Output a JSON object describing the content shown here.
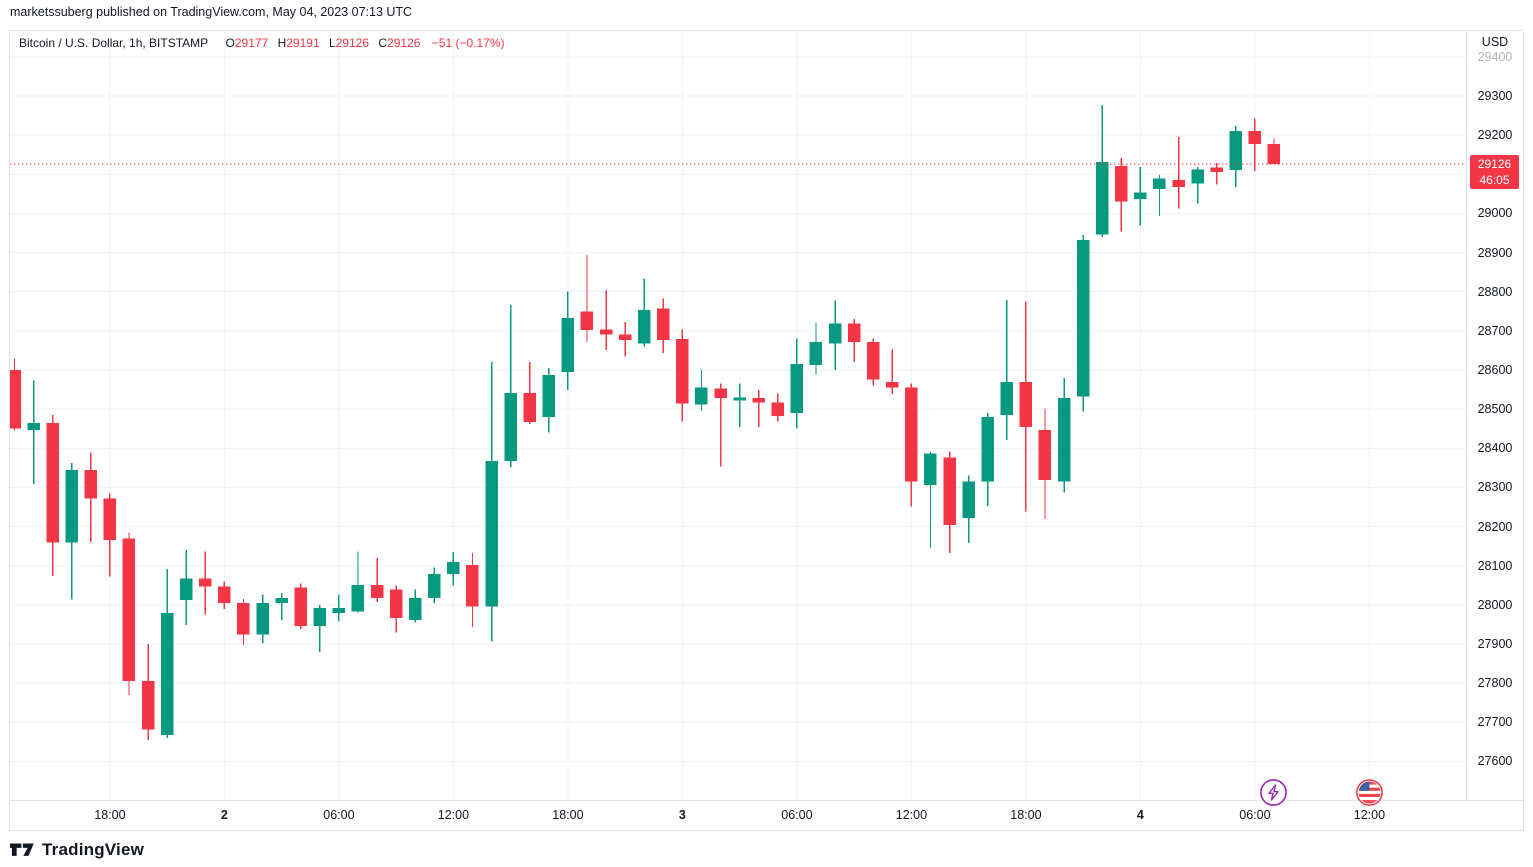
{
  "header": {
    "text": "marketssuberg published on TradingView.com, May 04, 2023 07:13 UTC"
  },
  "legend": {
    "title": "Bitcoin / U.S. Dollar, 1h, BITSTAMP",
    "o_label": "O",
    "o": "29177",
    "h_label": "H",
    "h": "29191",
    "l_label": "L",
    "l": "29126",
    "c_label": "C",
    "c": "29126",
    "change": "−51 (−0.17%)"
  },
  "price_axis": {
    "currency": "USD",
    "labels": [
      {
        "text": "29400",
        "muted": true
      },
      {
        "text": "29300"
      },
      {
        "text": "29200"
      },
      {
        "text": "29000"
      },
      {
        "text": "28900"
      },
      {
        "text": "28800"
      },
      {
        "text": "28700"
      },
      {
        "text": "28600"
      },
      {
        "text": "28500"
      },
      {
        "text": "28400"
      },
      {
        "text": "28300"
      },
      {
        "text": "28200"
      },
      {
        "text": "28100"
      },
      {
        "text": "28000"
      },
      {
        "text": "27900"
      },
      {
        "text": "27800"
      },
      {
        "text": "27700"
      },
      {
        "text": "27600"
      }
    ],
    "badge": {
      "price": "29126",
      "countdown": "46:05"
    }
  },
  "time_axis": {
    "labels": [
      {
        "text": "18:00",
        "bar": 5
      },
      {
        "text": "2",
        "bar": 11,
        "bold": true
      },
      {
        "text": "06:00",
        "bar": 17
      },
      {
        "text": "12:00",
        "bar": 23
      },
      {
        "text": "18:00",
        "bar": 29
      },
      {
        "text": "3",
        "bar": 35,
        "bold": true
      },
      {
        "text": "06:00",
        "bar": 41
      },
      {
        "text": "12:00",
        "bar": 47
      },
      {
        "text": "18:00",
        "bar": 53
      },
      {
        "text": "4",
        "bar": 59,
        "bold": true
      },
      {
        "text": "06:00",
        "bar": 65
      },
      {
        "text": "12:00",
        "bar": 71
      }
    ]
  },
  "events": [
    {
      "name": "crypto-event",
      "icon": "lightning",
      "color": "#9C27B0",
      "bar": 66
    },
    {
      "name": "us-economic-event",
      "icon": "us-flag",
      "color": "#F0444F",
      "bar": 71
    }
  ],
  "footer": {
    "brand": "TradingView"
  },
  "colors": {
    "up": "#089981",
    "down": "#F23645",
    "grid": "#F0F3FA",
    "border": "#E0E3EB",
    "text": "#131722",
    "muted_text": "#B2B5BE"
  },
  "chart_data": {
    "type": "candlestick",
    "title": "Bitcoin / U.S. Dollar, 1h, BITSTAMP",
    "symbol": "BTCUSD",
    "interval": "1h",
    "exchange": "BITSTAMP",
    "ylabel": "USD",
    "ylim": [
      27500,
      29470
    ],
    "grid": true,
    "last_price": 29126,
    "countdown": "46:05",
    "change": "-51 (-0.17%)",
    "up_color": "#089981",
    "down_color": "#F23645",
    "columns": [
      "time",
      "open",
      "high",
      "low",
      "close"
    ],
    "bars": [
      [
        "May 1 13:00",
        28600,
        28630,
        28445,
        28450
      ],
      [
        "May 1 14:00",
        28447,
        28573,
        28309,
        28465
      ],
      [
        "May 1 15:00",
        28465,
        28485,
        28074,
        28159
      ],
      [
        "May 1 16:00",
        28159,
        28363,
        28014,
        28345
      ],
      [
        "May 1 17:00",
        28345,
        28389,
        28161,
        28272
      ],
      [
        "May 1 18:00",
        28272,
        28285,
        28072,
        28166
      ],
      [
        "May 1 19:00",
        28170,
        28185,
        27770,
        27806
      ],
      [
        "May 1 20:00",
        27806,
        27900,
        27655,
        27682
      ],
      [
        "May 1 21:00",
        27668,
        28092,
        27660,
        27979
      ],
      [
        "May 1 22:00",
        28013,
        28140,
        27949,
        28068
      ],
      [
        "May 1 23:00",
        28068,
        28136,
        27975,
        28047
      ],
      [
        "May 2 00:00",
        28047,
        28060,
        27990,
        28005
      ],
      [
        "May 2 01:00",
        28005,
        28015,
        27898,
        27925
      ],
      [
        "May 2 02:00",
        27925,
        28026,
        27903,
        28005
      ],
      [
        "May 2 03:00",
        28005,
        28031,
        27962,
        28018
      ],
      [
        "May 2 04:00",
        28044,
        28055,
        27938,
        27946
      ],
      [
        "May 2 05:00",
        27946,
        28000,
        27880,
        27992
      ],
      [
        "May 2 06:00",
        27979,
        28026,
        27957,
        27992
      ],
      [
        "May 2 07:00",
        27983,
        28136,
        27979,
        28051
      ],
      [
        "May 2 08:00",
        28051,
        28120,
        28008,
        28018
      ],
      [
        "May 2 09:00",
        28040,
        28050,
        27930,
        27967
      ],
      [
        "May 2 10:00",
        27962,
        28039,
        27955,
        28018
      ],
      [
        "May 2 11:00",
        28018,
        28096,
        28005,
        28079
      ],
      [
        "May 2 12:00",
        28079,
        28135,
        28050,
        28110
      ],
      [
        "May 2 13:00",
        28102,
        28132,
        27944,
        27996
      ],
      [
        "May 2 14:00",
        27996,
        28620,
        27907,
        28368
      ],
      [
        "May 2 15:00",
        28368,
        28766,
        28352,
        28541
      ],
      [
        "May 2 16:00",
        28541,
        28620,
        28462,
        28467
      ],
      [
        "May 2 17:00",
        28480,
        28605,
        28441,
        28587
      ],
      [
        "May 2 18:00",
        28595,
        28800,
        28549,
        28733
      ],
      [
        "May 2 19:00",
        28749,
        28894,
        28672,
        28702
      ],
      [
        "May 2 20:00",
        28704,
        28804,
        28651,
        28691
      ],
      [
        "May 2 21:00",
        28691,
        28723,
        28634,
        28677
      ],
      [
        "May 2 22:00",
        28668,
        28834,
        28660,
        28753
      ],
      [
        "May 2 23:00",
        28757,
        28783,
        28643,
        28677
      ],
      [
        "May 3 00:00",
        28679,
        28704,
        28468,
        28515
      ],
      [
        "May 3 01:00",
        28512,
        28600,
        28495,
        28555
      ],
      [
        "May 3 02:00",
        28553,
        28566,
        28353,
        28528
      ],
      [
        "May 3 03:00",
        28522,
        28566,
        28455,
        28530
      ],
      [
        "May 3 04:00",
        28528,
        28549,
        28455,
        28517
      ],
      [
        "May 3 05:00",
        28517,
        28540,
        28468,
        28483
      ],
      [
        "May 3 06:00",
        28490,
        28681,
        28450,
        28615
      ],
      [
        "May 3 07:00",
        28613,
        28720,
        28589,
        28672
      ],
      [
        "May 3 08:00",
        28668,
        28777,
        28600,
        28719
      ],
      [
        "May 3 09:00",
        28719,
        28730,
        28621,
        28672
      ],
      [
        "May 3 10:00",
        28672,
        28680,
        28560,
        28576
      ],
      [
        "May 3 11:00",
        28570,
        28653,
        28539,
        28556
      ],
      [
        "May 3 12:00",
        28556,
        28566,
        28251,
        28315
      ],
      [
        "May 3 13:00",
        28306,
        28390,
        28145,
        28387
      ],
      [
        "May 3 14:00",
        28376,
        28392,
        28132,
        28204
      ],
      [
        "May 3 15:00",
        28222,
        28330,
        28158,
        28315
      ],
      [
        "May 3 16:00",
        28315,
        28490,
        28253,
        28480
      ],
      [
        "May 3 17:00",
        28485,
        28779,
        28421,
        28570
      ],
      [
        "May 3 18:00",
        28570,
        28775,
        28238,
        28455
      ],
      [
        "May 3 19:00",
        28447,
        28502,
        28219,
        28319
      ],
      [
        "May 3 20:00",
        28315,
        28579,
        28287,
        28528
      ],
      [
        "May 3 21:00",
        28532,
        28945,
        28494,
        28932
      ],
      [
        "May 3 22:00",
        28946,
        29277,
        28940,
        29131
      ],
      [
        "May 3 23:00",
        29121,
        29141,
        28954,
        29031
      ],
      [
        "May 4 00:00",
        29037,
        29119,
        28969,
        29054
      ],
      [
        "May 4 01:00",
        29062,
        29098,
        28994,
        29089
      ],
      [
        "May 4 02:00",
        29085,
        29195,
        29012,
        29068
      ],
      [
        "May 4 03:00",
        29076,
        29119,
        29026,
        29112
      ],
      [
        "May 4 04:00",
        29117,
        29129,
        29074,
        29106
      ],
      [
        "May 4 05:00",
        29111,
        29223,
        29068,
        29210
      ],
      [
        "May 4 06:00",
        29210,
        29243,
        29108,
        29177
      ],
      [
        "May 4 07:00",
        29177,
        29191,
        29126,
        29126
      ]
    ]
  }
}
